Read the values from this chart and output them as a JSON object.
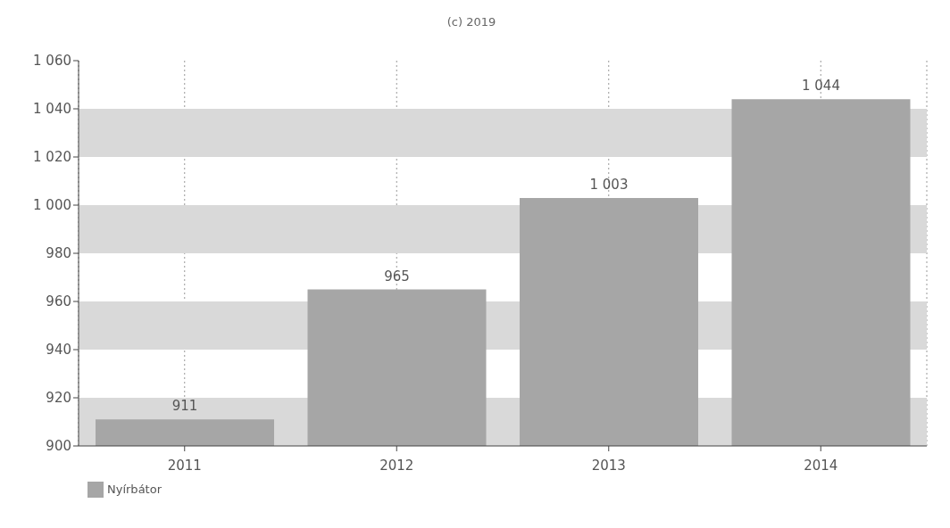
{
  "chart_data": {
    "type": "bar",
    "title": "(c) 2019",
    "categories": [
      "2011",
      "2012",
      "2013",
      "2014"
    ],
    "series": [
      {
        "name": "Nyírbátor",
        "color": "#a6a6a6",
        "values": [
          911,
          965,
          1003,
          1044
        ],
        "value_labels": [
          "911",
          "965",
          "1 003",
          "1 044"
        ]
      }
    ],
    "ylim": [
      900,
      1060
    ],
    "yticks": [
      900,
      920,
      940,
      960,
      980,
      {
        "value": 1000,
        "label": "1 000"
      },
      {
        "value": 1020,
        "label": "1 020"
      },
      {
        "value": 1040,
        "label": "1 040"
      },
      {
        "value": 1060,
        "label": "1 060"
      }
    ],
    "bands": [
      {
        "axis": "y",
        "from": 900,
        "to": 920,
        "color": "#d9d9d9"
      },
      {
        "axis": "y",
        "from": 940,
        "to": 960,
        "color": "#d9d9d9"
      },
      {
        "axis": "y",
        "from": 980,
        "to": 1000,
        "color": "#d9d9d9"
      },
      {
        "axis": "y",
        "from": 1020,
        "to": 1040,
        "color": "#d9d9d9"
      }
    ],
    "grid": "x",
    "legend": "bottom left"
  }
}
